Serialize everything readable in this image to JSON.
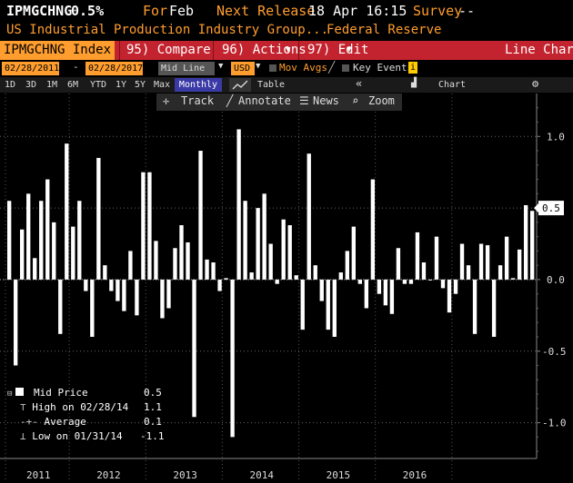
{
  "header": {
    "ticker": "IPMGCHNG",
    "value": "0.5%",
    "for_label": "For",
    "for_value": "Feb",
    "next_release_label": "Next Release",
    "next_release_value": "18 Apr 16:15",
    "survey_label": "Survey",
    "survey_value": "--"
  },
  "subtitle": {
    "name": "US Industrial Production Industry Group...",
    "source": "Federal Reserve"
  },
  "tabs": {
    "index": "IPMGCHNG Index",
    "compare": "95) Compare",
    "actions": "96) Actions",
    "edit": "97) Edit",
    "chart_type": "Line Chart"
  },
  "controls": {
    "start_date": "02/28/2011",
    "end_date": "02/28/2017",
    "price_type": "Mid Line",
    "currency": "USD",
    "mov_avgs": "Mov Avgs",
    "key_events": "Key Events"
  },
  "ranges": {
    "items": [
      "1D",
      "3D",
      "1M",
      "6M",
      "YTD",
      "1Y",
      "5Y",
      "Max"
    ],
    "period": "Monthly",
    "table": "Table",
    "chart_content": "Chart Content"
  },
  "toolbar": {
    "track": "Track",
    "annotate": "Annotate",
    "news": "News",
    "zoom": "Zoom"
  },
  "legend": {
    "mid_price_label": "Mid Price",
    "mid_price_value": "0.5",
    "high_label": "High on 02/28/14",
    "high_value": "1.1",
    "avg_label": "Average",
    "avg_value": "0.1",
    "low_label": "Low on 01/31/14",
    "low_value": "-1.1"
  },
  "chart_data": {
    "type": "bar",
    "y_ticks": [
      "1.0",
      "0.5",
      "0.0",
      "-0.5",
      "-1.0"
    ],
    "y_range": [
      -1.25,
      1.3
    ],
    "last_value_label": "0.5",
    "years": [
      "2011",
      "2012",
      "2013",
      "2014",
      "2015",
      "2016"
    ],
    "values": [
      0.55,
      -0.6,
      0.35,
      0.6,
      0.15,
      0.55,
      0.7,
      0.4,
      -0.38,
      0.95,
      0.37,
      0.55,
      -0.08,
      -0.4,
      0.85,
      0.1,
      -0.08,
      -0.15,
      -0.22,
      0.2,
      -0.25,
      0.75,
      0.75,
      0.27,
      -0.27,
      -0.2,
      0.22,
      0.38,
      0.26,
      -0.96,
      0.9,
      0.14,
      0.12,
      -0.08,
      0.01,
      -1.1,
      1.05,
      0.55,
      0.05,
      0.5,
      0.6,
      0.25,
      -0.03,
      0.42,
      0.38,
      0.03,
      -0.35,
      0.88,
      0.1,
      -0.15,
      -0.35,
      -0.4,
      0.05,
      0.2,
      0.37,
      -0.03,
      -0.2,
      0.7,
      -0.1,
      -0.18,
      -0.24,
      0.22,
      -0.03,
      -0.03,
      0.33,
      0.12,
      0.0,
      0.3,
      -0.06,
      -0.23,
      -0.1,
      0.25,
      0.1,
      -0.38,
      0.25,
      0.24,
      -0.4,
      0.1,
      0.3,
      0.01,
      0.21,
      0.52,
      0.48
    ]
  }
}
